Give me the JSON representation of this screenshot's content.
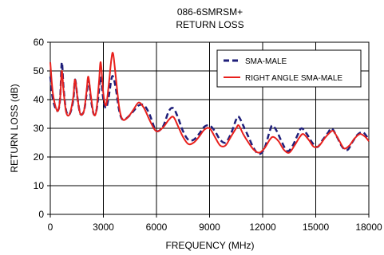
{
  "chart_data": {
    "type": "line",
    "title": "086-6SMRSM+",
    "subtitle": "RETURN LOSS",
    "xlabel": "FREQUENCY (MHz)",
    "ylabel": "RETURN LOSS (dB)",
    "xlim": [
      0,
      18000
    ],
    "ylim": [
      0,
      60
    ],
    "xticks": [
      0,
      3000,
      6000,
      9000,
      12000,
      15000,
      18000
    ],
    "yticks": [
      0,
      10,
      20,
      30,
      40,
      50,
      60
    ],
    "grid": true,
    "legend_position": "top-right",
    "series": [
      {
        "name": "SMA-MALE",
        "color": "#1f1f7a",
        "style": "dashed",
        "points": [
          [
            0,
            48
          ],
          [
            150,
            40
          ],
          [
            400,
            36
          ],
          [
            550,
            40
          ],
          [
            650,
            53
          ],
          [
            750,
            44
          ],
          [
            900,
            36
          ],
          [
            1100,
            35
          ],
          [
            1300,
            40
          ],
          [
            1400,
            47
          ],
          [
            1550,
            40
          ],
          [
            1700,
            35
          ],
          [
            1900,
            36
          ],
          [
            2050,
            42
          ],
          [
            2150,
            47
          ],
          [
            2300,
            40
          ],
          [
            2450,
            35
          ],
          [
            2600,
            36
          ],
          [
            2750,
            43
          ],
          [
            2850,
            48
          ],
          [
            3000,
            40
          ],
          [
            3150,
            37
          ],
          [
            3300,
            41
          ],
          [
            3450,
            47
          ],
          [
            3550,
            48
          ],
          [
            3700,
            44
          ],
          [
            3900,
            36
          ],
          [
            4100,
            33
          ],
          [
            4400,
            34
          ],
          [
            4700,
            36
          ],
          [
            5000,
            38
          ],
          [
            5300,
            38
          ],
          [
            5600,
            35
          ],
          [
            5900,
            30
          ],
          [
            6100,
            29
          ],
          [
            6400,
            31
          ],
          [
            6700,
            36
          ],
          [
            6950,
            37
          ],
          [
            7200,
            34
          ],
          [
            7500,
            29
          ],
          [
            7800,
            26
          ],
          [
            8100,
            26
          ],
          [
            8400,
            28
          ],
          [
            8700,
            30.5
          ],
          [
            9000,
            31
          ],
          [
            9300,
            29
          ],
          [
            9600,
            26
          ],
          [
            9900,
            25
          ],
          [
            10200,
            28
          ],
          [
            10500,
            33
          ],
          [
            10650,
            34
          ],
          [
            10900,
            31
          ],
          [
            11200,
            27
          ],
          [
            11500,
            23
          ],
          [
            11800,
            21
          ],
          [
            12100,
            23
          ],
          [
            12400,
            29
          ],
          [
            12550,
            31
          ],
          [
            12800,
            29
          ],
          [
            13100,
            25
          ],
          [
            13400,
            22
          ],
          [
            13700,
            24
          ],
          [
            14000,
            28
          ],
          [
            14200,
            30
          ],
          [
            14500,
            28
          ],
          [
            14800,
            25
          ],
          [
            15100,
            23.5
          ],
          [
            15400,
            26
          ],
          [
            15700,
            28.5
          ],
          [
            15900,
            30
          ],
          [
            16200,
            27
          ],
          [
            16500,
            23.5
          ],
          [
            16800,
            22.5
          ],
          [
            17100,
            25.5
          ],
          [
            17400,
            28
          ],
          [
            17700,
            28.5
          ],
          [
            18000,
            26
          ]
        ]
      },
      {
        "name": "RIGHT ANGLE SMA-MALE",
        "color": "#e8201c",
        "style": "solid",
        "points": [
          [
            0,
            53
          ],
          [
            150,
            42
          ],
          [
            400,
            36
          ],
          [
            550,
            40
          ],
          [
            650,
            50
          ],
          [
            750,
            43
          ],
          [
            900,
            35.5
          ],
          [
            1100,
            35
          ],
          [
            1300,
            41
          ],
          [
            1400,
            47
          ],
          [
            1550,
            40
          ],
          [
            1700,
            35
          ],
          [
            1900,
            36
          ],
          [
            2050,
            43
          ],
          [
            2150,
            48
          ],
          [
            2300,
            41
          ],
          [
            2450,
            35
          ],
          [
            2600,
            36
          ],
          [
            2750,
            46
          ],
          [
            2850,
            53
          ],
          [
            3000,
            42
          ],
          [
            3150,
            38
          ],
          [
            3300,
            45
          ],
          [
            3450,
            54
          ],
          [
            3550,
            56
          ],
          [
            3700,
            48
          ],
          [
            3900,
            37
          ],
          [
            4100,
            33
          ],
          [
            4400,
            34
          ],
          [
            4700,
            36.5
          ],
          [
            5000,
            39
          ],
          [
            5300,
            37
          ],
          [
            5600,
            33
          ],
          [
            5900,
            29.5
          ],
          [
            6100,
            29
          ],
          [
            6400,
            30.5
          ],
          [
            6700,
            33
          ],
          [
            6950,
            34
          ],
          [
            7200,
            31
          ],
          [
            7500,
            27
          ],
          [
            7800,
            24.5
          ],
          [
            8100,
            25
          ],
          [
            8400,
            27
          ],
          [
            8700,
            29.5
          ],
          [
            9000,
            30
          ],
          [
            9300,
            27
          ],
          [
            9600,
            24
          ],
          [
            9900,
            24
          ],
          [
            10200,
            27
          ],
          [
            10500,
            30
          ],
          [
            10650,
            31
          ],
          [
            10900,
            28
          ],
          [
            11200,
            25
          ],
          [
            11500,
            22.5
          ],
          [
            11800,
            21.5
          ],
          [
            12100,
            23
          ],
          [
            12400,
            26
          ],
          [
            12600,
            27
          ],
          [
            12900,
            25.5
          ],
          [
            13200,
            22.5
          ],
          [
            13500,
            21.5
          ],
          [
            13800,
            24
          ],
          [
            14100,
            27
          ],
          [
            14300,
            28
          ],
          [
            14600,
            26
          ],
          [
            14900,
            23.5
          ],
          [
            15200,
            24
          ],
          [
            15500,
            26.5
          ],
          [
            15800,
            28.5
          ],
          [
            16000,
            29
          ],
          [
            16300,
            26
          ],
          [
            16600,
            23
          ],
          [
            16900,
            24
          ],
          [
            17200,
            26.5
          ],
          [
            17500,
            28
          ],
          [
            17800,
            27
          ],
          [
            18000,
            25.5
          ]
        ]
      }
    ]
  }
}
